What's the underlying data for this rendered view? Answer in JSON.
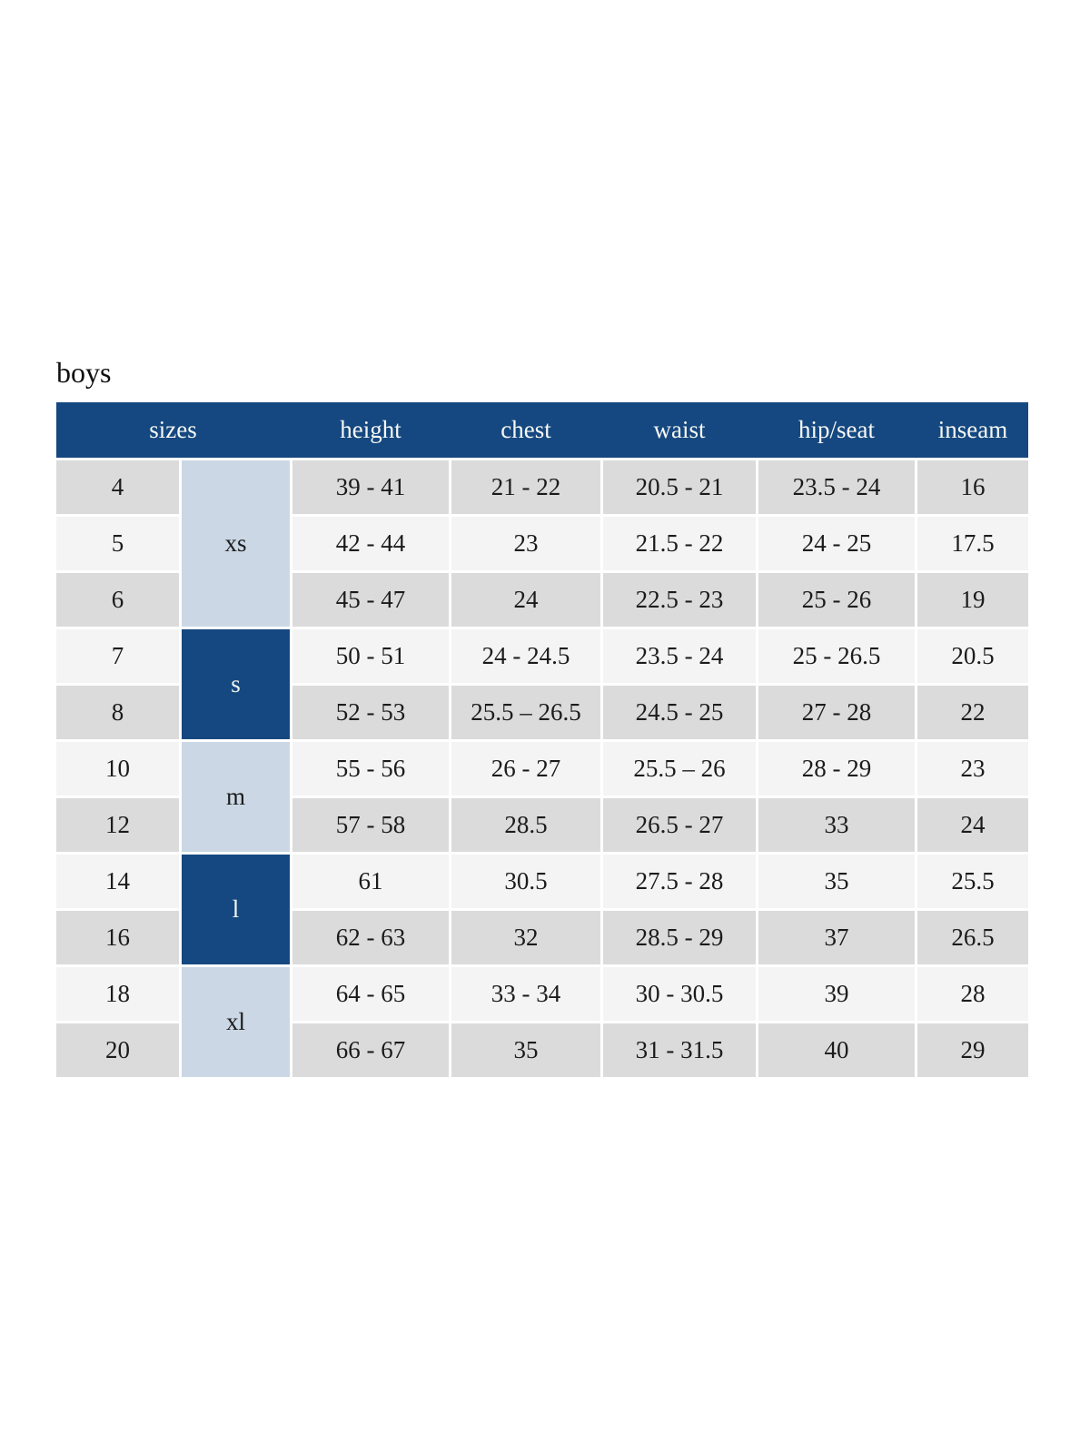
{
  "page": {
    "title": "boys"
  },
  "colors": {
    "header_navy": "#154880",
    "group_light_blue": "#cbd7e4",
    "row_gray": "#dbdbdb",
    "row_light": "#f4f4f4",
    "header_text": "#f7f8f5",
    "body_text": "#1b1b1b"
  },
  "table": {
    "headers": {
      "sizes": "sizes",
      "height": "height",
      "chest": "chest",
      "waist": "waist",
      "hip_seat": "hip/seat",
      "inseam": "inseam"
    },
    "groups": [
      {
        "label": "xs",
        "style": "light",
        "row_span": "rows 4-6"
      },
      {
        "label": "s",
        "style": "dark",
        "row_span": "rows 7-8"
      },
      {
        "label": "m",
        "style": "light",
        "row_span": "rows 10-12"
      },
      {
        "label": "l",
        "style": "dark",
        "row_span": "rows 14-16"
      },
      {
        "label": "xl",
        "style": "light",
        "row_span": "rows 18-20"
      }
    ],
    "rows": [
      {
        "size": "4",
        "height": "39 - 41",
        "chest": "21 - 22",
        "waist": "20.5 - 21",
        "hip_seat": "23.5 - 24",
        "inseam": "16"
      },
      {
        "size": "5",
        "height": "42 - 44",
        "chest": "23",
        "waist": "21.5 - 22",
        "hip_seat": "24 - 25",
        "inseam": "17.5"
      },
      {
        "size": "6",
        "height": "45 - 47",
        "chest": "24",
        "waist": "22.5 - 23",
        "hip_seat": "25 - 26",
        "inseam": "19"
      },
      {
        "size": "7",
        "height": "50 - 51",
        "chest": "24 - 24.5",
        "waist": "23.5 - 24",
        "hip_seat": "25 - 26.5",
        "inseam": "20.5"
      },
      {
        "size": "8",
        "height": "52 - 53",
        "chest": "25.5 – 26.5",
        "waist": "24.5 - 25",
        "hip_seat": "27 - 28",
        "inseam": "22"
      },
      {
        "size": "10",
        "height": "55 - 56",
        "chest": "26 - 27",
        "waist": "25.5 – 26",
        "hip_seat": "28 - 29",
        "inseam": "23"
      },
      {
        "size": "12",
        "height": "57 - 58",
        "chest": "28.5",
        "waist": "26.5 - 27",
        "hip_seat": "33",
        "inseam": "24"
      },
      {
        "size": "14",
        "height": "61",
        "chest": "30.5",
        "waist": "27.5 - 28",
        "hip_seat": "35",
        "inseam": "25.5"
      },
      {
        "size": "16",
        "height": "62 - 63",
        "chest": "32",
        "waist": "28.5 - 29",
        "hip_seat": "37",
        "inseam": "26.5"
      },
      {
        "size": "18",
        "height": "64 - 65",
        "chest": "33 - 34",
        "waist": "30 - 30.5",
        "hip_seat": "39",
        "inseam": "28"
      },
      {
        "size": "20",
        "height": "66 - 67",
        "chest": "35",
        "waist": "31 - 31.5",
        "hip_seat": "40",
        "inseam": "29"
      }
    ]
  }
}
